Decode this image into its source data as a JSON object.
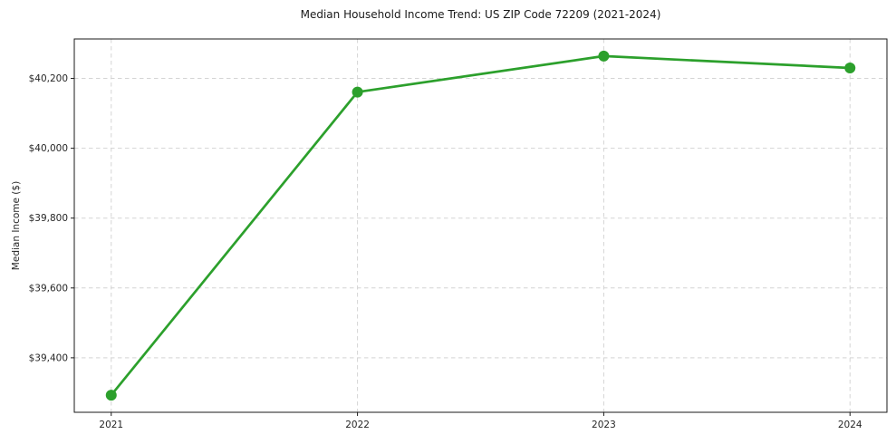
{
  "chart": {
    "title": "Median Household Income Trend: US ZIP Code 72209 (2021-2024)",
    "ylabel": "Median Income ($)"
  },
  "chart_data": {
    "type": "line",
    "title": "Median Household Income Trend: US ZIP Code 72209 (2021-2024)",
    "xlabel": "",
    "ylabel": "Median Income ($)",
    "x": [
      2021,
      2022,
      2023,
      2024
    ],
    "xtick_labels": [
      "2021",
      "2022",
      "2023",
      "2024"
    ],
    "values": [
      39293,
      40161,
      40264,
      40230
    ],
    "yticks": [
      39400,
      39600,
      39800,
      40000,
      40200
    ],
    "ytick_labels": [
      "$39,400",
      "$39,600",
      "$39,800",
      "$40,000",
      "$40,200"
    ],
    "xlim": [
      2020.85,
      2024.15
    ],
    "ylim": [
      39244,
      40313
    ],
    "grid": true,
    "grid_style": "dashed",
    "legend": "none",
    "colors": {
      "line": "#2ca02c",
      "marker": "#2ca02c",
      "grid": "#d4d4d4",
      "spine": "#1a1a1a",
      "text": "#262626",
      "background": "#ffffff"
    }
  }
}
